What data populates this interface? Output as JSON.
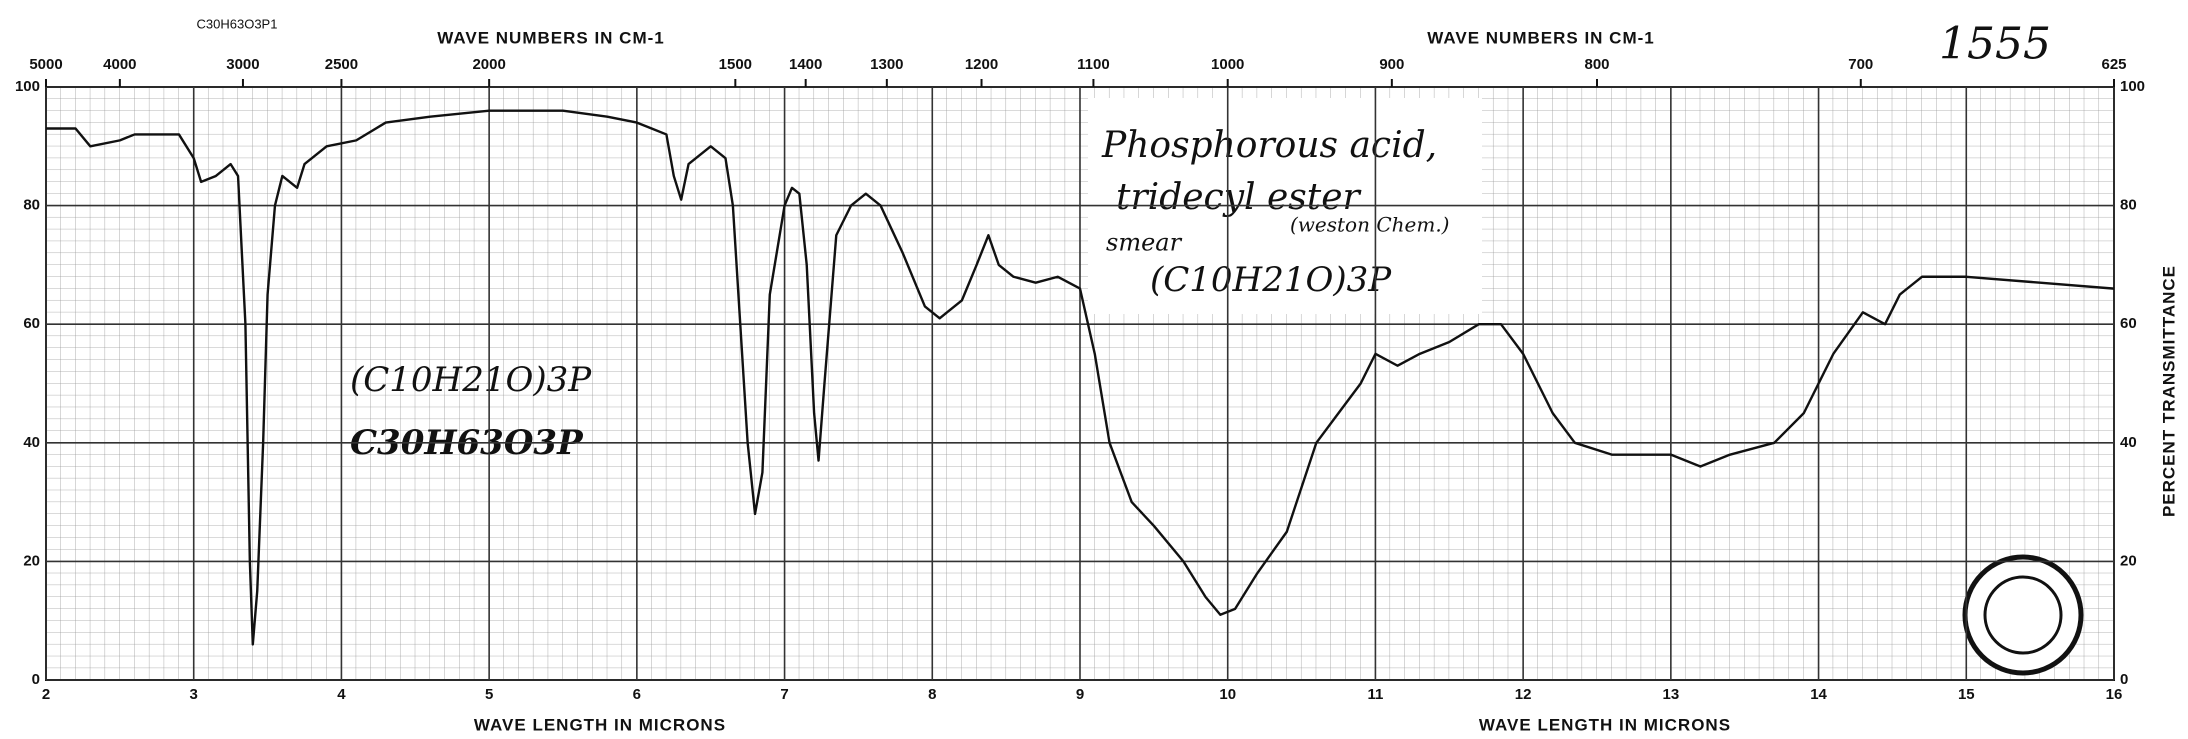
{
  "chart_data": {
    "type": "line",
    "formula_label": "C30H63O3P1",
    "spectrum_number": "1555",
    "top_axis_label": "WAVE NUMBERS IN CM-1",
    "x_label": "WAVE LENGTH IN MICRONS",
    "y_label": "PERCENT TRANSMITTANCE",
    "annotations": {
      "name_line1": "Phosphorous acid,",
      "name_line2": "tridecyl ester",
      "sample": "smear",
      "source": "(weston Chem.)",
      "box_formula": "(C10H21O)3P",
      "left_formula1": "(C10H21O)3P",
      "left_formula2": "C30H63O3P"
    },
    "xlim": [
      2,
      16
    ],
    "xticks": [
      2,
      3,
      4,
      5,
      6,
      7,
      8,
      9,
      10,
      11,
      12,
      13,
      14,
      15,
      16
    ],
    "x2ticks": [
      5000,
      4000,
      3000,
      2500,
      2000,
      1500,
      1400,
      1300,
      1200,
      1100,
      1000,
      900,
      800,
      700,
      625
    ],
    "ylim": [
      0,
      100
    ],
    "yticks": [
      0,
      20,
      40,
      60,
      80,
      100
    ],
    "grid": true,
    "series": [
      {
        "color": "#111111",
        "x": [
          2.0,
          2.2,
          2.3,
          2.5,
          2.6,
          2.9,
          3.0,
          3.05,
          3.15,
          3.25,
          3.3,
          3.35,
          3.38,
          3.4,
          3.43,
          3.47,
          3.5,
          3.55,
          3.6,
          3.7,
          3.75,
          3.9,
          4.1,
          4.3,
          4.6,
          5.0,
          5.5,
          5.8,
          6.0,
          6.1,
          6.2,
          6.25,
          6.3,
          6.35,
          6.5,
          6.6,
          6.65,
          6.7,
          6.75,
          6.8,
          6.85,
          6.9,
          7.0,
          7.05,
          7.1,
          7.15,
          7.2,
          7.23,
          7.27,
          7.35,
          7.45,
          7.55,
          7.65,
          7.8,
          7.95,
          8.05,
          8.1,
          8.2,
          8.3,
          8.38,
          8.45,
          8.55,
          8.7,
          8.85,
          9.0,
          9.1,
          9.2,
          9.35,
          9.5,
          9.7,
          9.85,
          9.95,
          10.05,
          10.2,
          10.4,
          10.6,
          10.75,
          10.9,
          11.0,
          11.15,
          11.3,
          11.5,
          11.7,
          11.85,
          12.0,
          12.2,
          12.35,
          12.6,
          13.0,
          13.2,
          13.4,
          13.7,
          13.9,
          14.1,
          14.3,
          14.45,
          14.55,
          14.7,
          15.0,
          15.5,
          16.0
        ],
        "values": [
          93,
          93,
          90,
          91,
          92,
          92,
          88,
          84,
          85,
          87,
          85,
          60,
          20,
          6,
          15,
          40,
          65,
          80,
          85,
          83,
          87,
          90,
          91,
          94,
          95,
          96,
          96,
          95,
          94,
          93,
          92,
          85,
          81,
          87,
          90,
          88,
          80,
          60,
          40,
          28,
          35,
          65,
          80,
          83,
          82,
          70,
          45,
          37,
          50,
          75,
          80,
          82,
          80,
          72,
          63,
          61,
          62,
          64,
          70,
          75,
          70,
          68,
          67,
          68,
          66,
          55,
          40,
          30,
          26,
          20,
          14,
          11,
          12,
          18,
          25,
          40,
          45,
          50,
          55,
          53,
          55,
          57,
          60,
          60,
          55,
          45,
          40,
          38,
          38,
          36,
          38,
          40,
          45,
          55,
          62,
          60,
          65,
          68,
          68,
          67,
          66
        ]
      }
    ]
  }
}
